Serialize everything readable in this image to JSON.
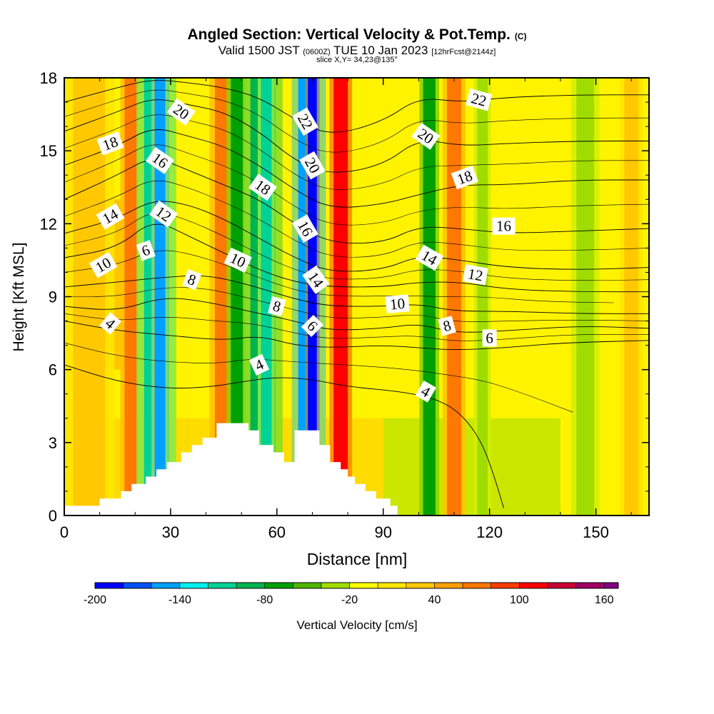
{
  "header": {
    "title": "Angled Section: Vertical Velocity & Pot.Temp.",
    "copyright_mark": "(C)",
    "valid_prefix": "Valid 1500 JST",
    "valid_utc": "(0600Z)",
    "valid_date": "TUE 10 Jan 2023",
    "forecast_tag": "[12hrFcst@2144z]",
    "slice_info": "slice X,Y= 34,23@135°"
  },
  "chart_data": {
    "type": "heatmap",
    "xlabel": "Distance [nm]",
    "ylabel": "Height [Kft MSL]",
    "xlim": [
      0,
      165
    ],
    "ylim": [
      0,
      18
    ],
    "x_ticks": [
      0,
      30,
      60,
      90,
      120,
      150
    ],
    "y_ticks": [
      0,
      3,
      6,
      9,
      12,
      15,
      18
    ],
    "colorbar": {
      "label": "Vertical Velocity [cm/s]",
      "tick_labels": [
        "-200",
        "-140",
        "-80",
        "-20",
        "40",
        "100",
        "160"
      ],
      "tick_values": [
        -200,
        -140,
        -80,
        -20,
        40,
        100,
        160
      ],
      "range": [
        -200,
        170
      ],
      "levels": [
        -200,
        -180,
        -160,
        -140,
        -120,
        -100,
        -80,
        -60,
        -40,
        -20,
        0,
        20,
        40,
        60,
        80,
        100,
        120,
        140,
        160,
        170
      ],
      "colors": [
        "#0000ff",
        "#0050f5",
        "#00a0ff",
        "#00f0f0",
        "#00d296",
        "#00b450",
        "#00a000",
        "#50b400",
        "#a0dc00",
        "#ffff00",
        "#ffe600",
        "#ffc800",
        "#ffa000",
        "#ff7800",
        "#ff3c00",
        "#ff0000",
        "#c80032",
        "#a00064",
        "#800080"
      ]
    },
    "velocity_bands": [
      {
        "x": 7,
        "w": 9,
        "v": 35,
        "ymax": 18
      },
      {
        "x": 19,
        "w": 4,
        "v": 70,
        "ymax": 18
      },
      {
        "x": 26,
        "w": 7,
        "v": -110,
        "ymax": 18
      },
      {
        "x": 27,
        "w": 3,
        "v": -150,
        "ymax": 18
      },
      {
        "x": 45,
        "w": 5,
        "v": 60,
        "ymax": 18
      },
      {
        "x": 49,
        "w": 4,
        "v": -70,
        "ymax": 18
      },
      {
        "x": 56,
        "w": 7,
        "v": -85,
        "ymax": 18
      },
      {
        "x": 57,
        "w": 3,
        "v": -110,
        "ymax": 18
      },
      {
        "x": 69,
        "w": 6,
        "v": -160,
        "ymax": 18
      },
      {
        "x": 70,
        "w": 2.5,
        "v": -190,
        "ymax": 18
      },
      {
        "x": 78,
        "w": 4,
        "v": 110,
        "ymax": 18
      },
      {
        "x": 103,
        "w": 3.5,
        "v": -80,
        "ymax": 18
      },
      {
        "x": 110,
        "w": 4,
        "v": 70,
        "ymax": 18
      },
      {
        "x": 118,
        "w": 3,
        "v": -30,
        "ymax": 18
      },
      {
        "x": 147,
        "w": 5,
        "v": -40,
        "ymax": 18
      },
      {
        "x": 160,
        "w": 4,
        "v": 35,
        "ymax": 18
      }
    ],
    "velocity_regions": [
      {
        "v": 30,
        "x0": 0,
        "x1": 90,
        "y0": 0,
        "y1": 4
      },
      {
        "v": 40,
        "x0": 5,
        "x1": 20,
        "y0": 6,
        "y1": 13
      },
      {
        "v": -30,
        "x0": 90,
        "x1": 140,
        "y0": 0,
        "y1": 4
      }
    ],
    "terrain": [
      [
        0,
        0.4
      ],
      [
        10,
        0.4
      ],
      [
        10,
        0.7
      ],
      [
        16,
        0.7
      ],
      [
        16,
        1
      ],
      [
        19,
        1
      ],
      [
        19,
        1.3
      ],
      [
        23,
        1.3
      ],
      [
        23,
        1.6
      ],
      [
        26,
        1.6
      ],
      [
        26,
        1.9
      ],
      [
        29,
        1.9
      ],
      [
        29,
        2.2
      ],
      [
        33,
        2.2
      ],
      [
        33,
        2.6
      ],
      [
        36,
        2.6
      ],
      [
        36,
        2.9
      ],
      [
        39,
        2.9
      ],
      [
        39,
        3.2
      ],
      [
        43,
        3.2
      ],
      [
        43,
        3.8
      ],
      [
        52,
        3.8
      ],
      [
        52,
        3.5
      ],
      [
        55,
        3.5
      ],
      [
        55,
        2.9
      ],
      [
        59,
        2.9
      ],
      [
        59,
        2.6
      ],
      [
        62,
        2.6
      ],
      [
        62,
        2.2
      ],
      [
        65,
        2.2
      ],
      [
        65,
        3.5
      ],
      [
        72,
        3.5
      ],
      [
        72,
        2.9
      ],
      [
        75,
        2.9
      ],
      [
        75,
        2.2
      ],
      [
        78,
        2.2
      ],
      [
        78,
        1.9
      ],
      [
        80,
        1.9
      ],
      [
        80,
        1.6
      ],
      [
        82,
        1.6
      ],
      [
        82,
        1.3
      ],
      [
        85,
        1.3
      ],
      [
        85,
        1
      ],
      [
        88,
        1
      ],
      [
        88,
        0.7
      ],
      [
        92,
        0.7
      ],
      [
        92,
        0.4
      ],
      [
        94,
        0.4
      ],
      [
        94,
        0
      ]
    ],
    "theta_contours": [
      {
        "level": 4,
        "label": "4",
        "points": [
          [
            0,
            6.2
          ],
          [
            15,
            5.5
          ],
          [
            30,
            5.2
          ],
          [
            42,
            5.3
          ],
          [
            50,
            5.5
          ],
          [
            60,
            5.7
          ],
          [
            70,
            5.6
          ],
          [
            80,
            5.3
          ],
          [
            95,
            5.1
          ],
          [
            105,
            4.8
          ],
          [
            112,
            4.2
          ],
          [
            118,
            3.0
          ],
          [
            122,
            1.3
          ],
          [
            124,
            0.3
          ]
        ]
      },
      {
        "level": 6,
        "label": "6",
        "points": [
          [
            0,
            8.0
          ],
          [
            15,
            7.6
          ],
          [
            30,
            7.4
          ],
          [
            45,
            7.2
          ],
          [
            55,
            7.4
          ],
          [
            65,
            7.0
          ],
          [
            75,
            6.9
          ],
          [
            90,
            7.0
          ],
          [
            100,
            6.9
          ],
          [
            110,
            6.8
          ],
          [
            125,
            6.9
          ],
          [
            140,
            7.1
          ],
          [
            165,
            7.2
          ]
        ]
      },
      {
        "level": 8,
        "label": "8",
        "points": [
          [
            0,
            8.6
          ],
          [
            15,
            8.4
          ],
          [
            28,
            9.0
          ],
          [
            40,
            8.8
          ],
          [
            52,
            8.4
          ],
          [
            65,
            8.0
          ],
          [
            75,
            7.6
          ],
          [
            90,
            7.7
          ],
          [
            100,
            7.9
          ],
          [
            110,
            7.5
          ],
          [
            125,
            7.6
          ],
          [
            145,
            7.8
          ],
          [
            165,
            7.7
          ]
        ]
      },
      {
        "level": 10,
        "label": "10",
        "points": [
          [
            0,
            9.4
          ],
          [
            15,
            9.6
          ],
          [
            28,
            9.8
          ],
          [
            40,
            9.9
          ],
          [
            52,
            9.5
          ],
          [
            65,
            8.9
          ],
          [
            75,
            8.6
          ],
          [
            90,
            8.6
          ],
          [
            100,
            8.7
          ],
          [
            110,
            8.4
          ],
          [
            125,
            8.4
          ],
          [
            145,
            8.3
          ],
          [
            165,
            8.3
          ]
        ]
      },
      {
        "level": 12,
        "label": "12",
        "points": [
          [
            0,
            10.6
          ],
          [
            15,
            11.0
          ],
          [
            25,
            12.2
          ],
          [
            35,
            11.5
          ],
          [
            45,
            10.8
          ],
          [
            55,
            10.1
          ],
          [
            65,
            9.6
          ],
          [
            75,
            9.4
          ],
          [
            90,
            9.4
          ],
          [
            100,
            9.6
          ],
          [
            112,
            9.6
          ],
          [
            125,
            9.3
          ],
          [
            145,
            9.2
          ],
          [
            165,
            9.2
          ]
        ]
      },
      {
        "level": 14,
        "label": "14",
        "points": [
          [
            0,
            11.6
          ],
          [
            15,
            12.2
          ],
          [
            25,
            13.0
          ],
          [
            35,
            12.8
          ],
          [
            45,
            12.2
          ],
          [
            55,
            11.4
          ],
          [
            65,
            10.6
          ],
          [
            75,
            10.0
          ],
          [
            90,
            10.1
          ],
          [
            100,
            10.7
          ],
          [
            112,
            10.5
          ],
          [
            125,
            10.2
          ],
          [
            145,
            10.1
          ],
          [
            165,
            10.2
          ]
        ]
      },
      {
        "level": 16,
        "label": "16",
        "points": [
          [
            0,
            13.0
          ],
          [
            15,
            14.0
          ],
          [
            25,
            14.8
          ],
          [
            35,
            14.2
          ],
          [
            45,
            13.6
          ],
          [
            55,
            13.0
          ],
          [
            65,
            12.0
          ],
          [
            75,
            11.2
          ],
          [
            90,
            11.2
          ],
          [
            100,
            11.9
          ],
          [
            112,
            11.8
          ],
          [
            125,
            11.6
          ],
          [
            145,
            11.7
          ],
          [
            165,
            11.8
          ]
        ]
      },
      {
        "level": 18,
        "label": "18",
        "points": [
          [
            0,
            14.4
          ],
          [
            15,
            15.2
          ],
          [
            25,
            16.0
          ],
          [
            35,
            15.6
          ],
          [
            45,
            15.2
          ],
          [
            55,
            14.4
          ],
          [
            65,
            13.4
          ],
          [
            75,
            12.6
          ],
          [
            90,
            12.8
          ],
          [
            100,
            13.2
          ],
          [
            112,
            13.6
          ],
          [
            125,
            13.6
          ],
          [
            145,
            13.8
          ],
          [
            165,
            13.8
          ]
        ]
      },
      {
        "level": 20,
        "label": "20",
        "points": [
          [
            0,
            15.8
          ],
          [
            15,
            16.6
          ],
          [
            25,
            17.2
          ],
          [
            35,
            16.9
          ],
          [
            45,
            16.6
          ],
          [
            55,
            15.8
          ],
          [
            65,
            14.6
          ],
          [
            75,
            14.0
          ],
          [
            90,
            14.4
          ],
          [
            100,
            15.5
          ],
          [
            112,
            15.2
          ],
          [
            125,
            15.3
          ],
          [
            145,
            15.4
          ],
          [
            165,
            15.4
          ]
        ]
      },
      {
        "level": 22,
        "label": "22",
        "points": [
          [
            0,
            17.0
          ],
          [
            15,
            17.6
          ],
          [
            25,
            17.95
          ],
          [
            35,
            17.8
          ],
          [
            45,
            17.6
          ],
          [
            55,
            17.2
          ],
          [
            65,
            16.3
          ],
          [
            75,
            15.6
          ],
          [
            90,
            16.2
          ],
          [
            100,
            17.2
          ],
          [
            112,
            17.0
          ],
          [
            125,
            17.2
          ],
          [
            145,
            17.3
          ],
          [
            165,
            17.3
          ]
        ]
      }
    ],
    "contour_labels": [
      {
        "text": "20",
        "x": 33,
        "y": 16.6,
        "rot": 35
      },
      {
        "text": "22",
        "x": 68,
        "y": 16.2,
        "rot": 60
      },
      {
        "text": "22",
        "x": 117,
        "y": 17.1,
        "rot": 15
      },
      {
        "text": "18",
        "x": 13,
        "y": 15.3,
        "rot": -20
      },
      {
        "text": "16",
        "x": 27,
        "y": 14.6,
        "rot": 35
      },
      {
        "text": "20",
        "x": 70,
        "y": 14.4,
        "rot": 60
      },
      {
        "text": "20",
        "x": 102,
        "y": 15.6,
        "rot": 35
      },
      {
        "text": "18",
        "x": 56,
        "y": 13.5,
        "rot": 35
      },
      {
        "text": "18",
        "x": 113,
        "y": 13.9,
        "rot": -20
      },
      {
        "text": "14",
        "x": 13,
        "y": 12.3,
        "rot": -30
      },
      {
        "text": "12",
        "x": 28,
        "y": 12.4,
        "rot": 35
      },
      {
        "text": "16",
        "x": 68,
        "y": 11.8,
        "rot": 60
      },
      {
        "text": "16",
        "x": 124,
        "y": 11.9,
        "rot": 0
      },
      {
        "text": "10",
        "x": 11,
        "y": 10.3,
        "rot": -30
      },
      {
        "text": "6",
        "x": 23,
        "y": 10.9,
        "rot": -20
      },
      {
        "text": "10",
        "x": 49,
        "y": 10.5,
        "rot": 25
      },
      {
        "text": "14",
        "x": 103,
        "y": 10.6,
        "rot": 30
      },
      {
        "text": "12",
        "x": 116,
        "y": 9.9,
        "rot": 10
      },
      {
        "text": "8",
        "x": 36,
        "y": 9.7,
        "rot": 20
      },
      {
        "text": "14",
        "x": 71,
        "y": 9.7,
        "rot": 55
      },
      {
        "text": "8",
        "x": 60,
        "y": 8.6,
        "rot": 15
      },
      {
        "text": "10",
        "x": 94,
        "y": 8.7,
        "rot": -5
      },
      {
        "text": "4",
        "x": 13,
        "y": 7.9,
        "rot": 40
      },
      {
        "text": "6",
        "x": 70,
        "y": 7.8,
        "rot": 45
      },
      {
        "text": "8",
        "x": 108,
        "y": 7.8,
        "rot": -15
      },
      {
        "text": "6",
        "x": 120,
        "y": 7.3,
        "rot": 0
      },
      {
        "text": "4",
        "x": 55,
        "y": 6.2,
        "rot": -25
      },
      {
        "text": "4",
        "x": 102,
        "y": 5.1,
        "rot": 30
      }
    ]
  }
}
